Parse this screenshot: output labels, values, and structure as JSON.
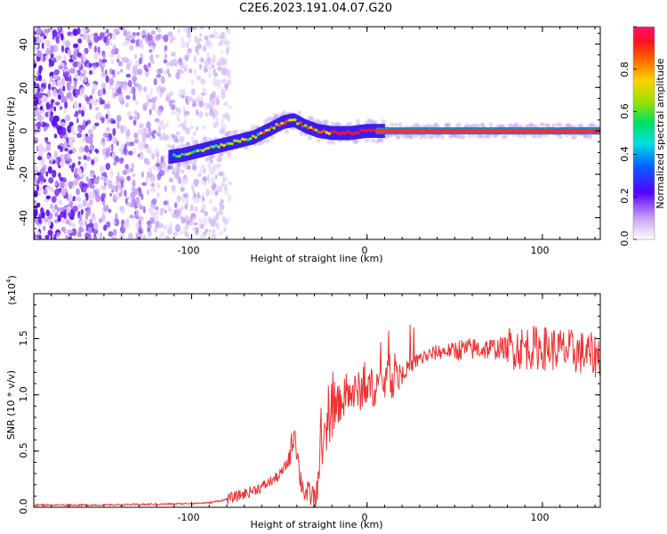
{
  "figure_title": "C2E6.2023.191.04.07.G20",
  "chart_data": [
    {
      "type": "heatmap",
      "title": "",
      "xlabel": "Height of straight line (km)",
      "ylabel": "Frequency (Hz)",
      "xlim": [
        -190,
        133
      ],
      "ylim": [
        -50,
        48
      ],
      "x_ticks": [
        "-100",
        "0",
        "100"
      ],
      "y_ticks": [
        "-40",
        "-20",
        "0",
        "20",
        "40"
      ],
      "colorbar": {
        "label": "Normalized spectral amplitude",
        "range": [
          0,
          1
        ],
        "ticks": [
          "0.0",
          "0.2",
          "0.4",
          "0.6",
          "0.8"
        ]
      },
      "ridge": {
        "x": [
          -113,
          -105,
          -95,
          -85,
          -75,
          -65,
          -55,
          -48,
          -42,
          -35,
          -28,
          -20,
          -10,
          0,
          10,
          30,
          60,
          100,
          133
        ],
        "y": [
          -12,
          -11,
          -9,
          -7,
          -5,
          -3,
          1,
          4,
          5,
          2,
          0,
          -1,
          -1,
          0,
          0,
          0,
          0,
          0,
          0
        ]
      },
      "grid": false
    },
    {
      "type": "line",
      "title": "",
      "xlabel": "Height of straight line (km)",
      "ylabel": "SNR (10 * v/v)",
      "y_multiplier_label": "(x10",
      "y_multiplier_exp": "4",
      "xlim": [
        -190,
        133
      ],
      "ylim": [
        0,
        1.9
      ],
      "x_ticks": [
        "-100",
        "0",
        "100"
      ],
      "y_ticks": [
        "0.0",
        "0.5",
        "1.0",
        "1.5"
      ],
      "series": [
        {
          "color": "#ee3333",
          "x": [
            -190,
            -150,
            -110,
            -90,
            -80,
            -70,
            -60,
            -50,
            -45,
            -41,
            -40,
            -38,
            -35,
            -30,
            -28,
            -25,
            -20,
            -15,
            -10,
            -5,
            0,
            5,
            10,
            15,
            20,
            25,
            30,
            40,
            50,
            60,
            70,
            80,
            90,
            100,
            110,
            120,
            130
          ],
          "y": [
            0.02,
            0.02,
            0.03,
            0.04,
            0.07,
            0.12,
            0.18,
            0.28,
            0.4,
            0.7,
            0.5,
            0.25,
            0.12,
            0.1,
            0.25,
            0.55,
            0.8,
            0.95,
            1.0,
            1.03,
            1.05,
            1.08,
            1.12,
            1.15,
            1.2,
            1.26,
            1.32,
            1.38,
            1.4,
            1.41,
            1.41,
            1.42,
            1.42,
            1.42,
            1.4,
            1.38,
            1.35
          ]
        }
      ],
      "grid": false
    }
  ]
}
